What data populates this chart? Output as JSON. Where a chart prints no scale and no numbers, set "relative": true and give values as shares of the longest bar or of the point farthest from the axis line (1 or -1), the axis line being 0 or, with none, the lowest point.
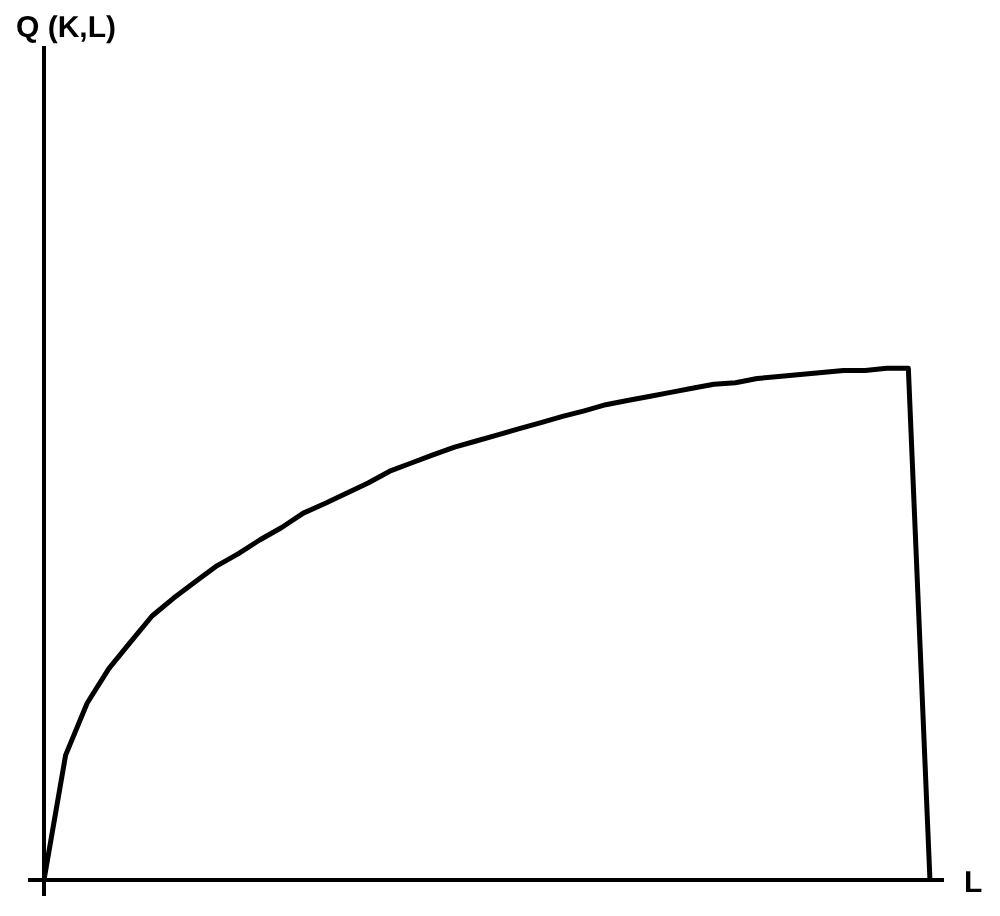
{
  "chart_data": {
    "type": "line",
    "xlabel": "L",
    "annotations": [
      "Q (K,L)"
    ],
    "relative": true,
    "grid": false,
    "legend": false,
    "marker": "none",
    "line_style": "solid",
    "categories": [
      null,
      null,
      null,
      null,
      null,
      null,
      null,
      null,
      null,
      null,
      null,
      null,
      null,
      null,
      null,
      null,
      null,
      null,
      null,
      null,
      null,
      null,
      null,
      null,
      null,
      null,
      null,
      null,
      null,
      null,
      null,
      null,
      null,
      null,
      null,
      null,
      null,
      null,
      null,
      null,
      null,
      null
    ],
    "series": [
      {
        "color": "#000000",
        "values": [
          0,
          0.244,
          0.346,
          0.413,
          0.465,
          0.516,
          0.551,
          0.583,
          0.614,
          0.638,
          0.665,
          0.689,
          0.717,
          0.736,
          0.756,
          0.776,
          0.799,
          0.815,
          0.831,
          0.846,
          0.858,
          0.87,
          0.882,
          0.894,
          0.906,
          0.917,
          0.929,
          0.937,
          0.945,
          0.953,
          0.961,
          0.969,
          0.972,
          0.98,
          0.984,
          0.988,
          0.992,
          0.996,
          0.996,
          1,
          1,
          0
        ]
      }
    ]
  }
}
